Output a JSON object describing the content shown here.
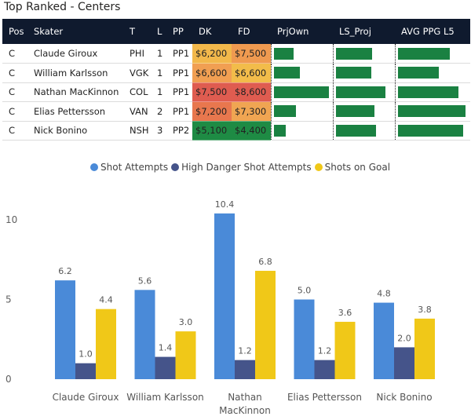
{
  "title": "Top Ranked - Centers",
  "table": {
    "columns": [
      "Pos",
      "Skater",
      "T",
      "L",
      "PP",
      "DK",
      "FD",
      "PrjOwn",
      "LS_Proj",
      "AVG PPG L5"
    ],
    "rows": [
      {
        "pos": "C",
        "skater": "Claude Giroux",
        "team": "PHI",
        "line": "1",
        "pp": "PP1",
        "dk": "$6,200",
        "fd": "$7,500",
        "dk_color": "#f2b84b",
        "fd_color": "#ef9a50",
        "prjown": 0.34,
        "ls_proj": 0.62,
        "avg_ppg_l5": 0.72
      },
      {
        "pos": "C",
        "skater": "William Karlsson",
        "team": "VGK",
        "line": "1",
        "pp": "PP1",
        "dk": "$6,600",
        "fd": "$6,600",
        "dk_color": "#f19f52",
        "fd_color": "#f2bc4a",
        "prjown": 0.44,
        "ls_proj": 0.6,
        "avg_ppg_l5": 0.57
      },
      {
        "pos": "C",
        "skater": "Nathan MacKinnon",
        "team": "COL",
        "line": "1",
        "pp": "PP1",
        "dk": "$7,500",
        "fd": "$8,600",
        "dk_color": "#df5c50",
        "fd_color": "#df5c50",
        "prjown": 0.94,
        "ls_proj": 0.85,
        "avg_ppg_l5": 0.84
      },
      {
        "pos": "C",
        "skater": "Elias Pettersson",
        "team": "VAN",
        "line": "2",
        "pp": "PP1",
        "dk": "$7,200",
        "fd": "$7,300",
        "dk_color": "#e8774e",
        "fd_color": "#f0a552",
        "prjown": 0.38,
        "ls_proj": 0.66,
        "avg_ppg_l5": 0.93
      },
      {
        "pos": "C",
        "skater": "Nick Bonino",
        "team": "NSH",
        "line": "3",
        "pp": "PP2",
        "dk": "$5,100",
        "fd": "$4,400",
        "dk_color": "#1e8b44",
        "fd_color": "#1e8b44",
        "prjown": 0.21,
        "ls_proj": 0.68,
        "avg_ppg_l5": 0.9
      }
    ]
  },
  "chart_data": {
    "type": "bar",
    "categories": [
      "Claude Giroux",
      "William Karlsson",
      "Nathan MacKinnon",
      "Elias Pettersson",
      "Nick Bonino"
    ],
    "category_lines": [
      [
        "Claude Giroux"
      ],
      [
        "William Karlsson"
      ],
      [
        "Nathan",
        "MacKinnon"
      ],
      [
        "Elias Pettersson"
      ],
      [
        "Nick Bonino"
      ]
    ],
    "series": [
      {
        "name": "Shot Attempts",
        "color": "#4a8ad8",
        "values": [
          6.2,
          5.6,
          10.4,
          5.0,
          4.8
        ],
        "labels": [
          "6.2",
          "5.6",
          "10.4",
          "5.0",
          "4.8"
        ]
      },
      {
        "name": "High Danger Shot Attempts",
        "color": "#45548a",
        "values": [
          1.0,
          1.4,
          1.2,
          1.2,
          2.0
        ],
        "labels": [
          "1.0",
          "1.4",
          "1.2",
          "1.2",
          "2.0"
        ]
      },
      {
        "name": "Shots on Goal",
        "color": "#f0c818",
        "values": [
          4.4,
          3.0,
          6.8,
          3.6,
          3.8
        ],
        "labels": [
          "4.4",
          "3.0",
          "6.8",
          "3.6",
          "3.8"
        ]
      }
    ],
    "yticks": [
      0,
      5,
      10
    ],
    "ylim": [
      0,
      10.4
    ],
    "legend_position": "top",
    "grid": false,
    "xlabel": "",
    "ylabel": ""
  }
}
